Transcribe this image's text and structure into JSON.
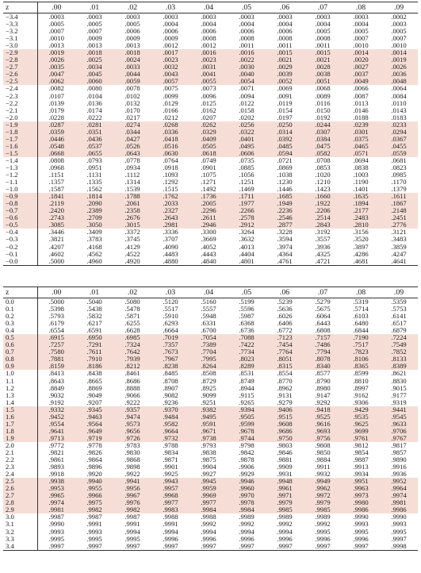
{
  "columns": [
    "z",
    ".00",
    ".01",
    ".02",
    ".03",
    ".04",
    ".05",
    ".06",
    ".07",
    ".08",
    ".09"
  ],
  "columns_bottom": [
    "z",
    ".00",
    ".01",
    ".02",
    ".03",
    ".04",
    ".05",
    ".06",
    ".07",
    ".08",
    ".09"
  ],
  "colors": {
    "band": "#f6ded6",
    "rule": "#333333"
  },
  "negative_table": [
    [
      "-3.4",
      ".0003",
      ".0003",
      ".0003",
      ".0003",
      ".0003",
      ".0003",
      ".0003",
      ".0003",
      ".0003",
      ".0002"
    ],
    [
      "-3.3",
      ".0005",
      ".0005",
      ".0005",
      ".0004",
      ".0004",
      ".0004",
      ".0004",
      ".0004",
      ".0004",
      ".0003"
    ],
    [
      "-3.2",
      ".0007",
      ".0007",
      ".0006",
      ".0006",
      ".0006",
      ".0006",
      ".0006",
      ".0005",
      ".0005",
      ".0005"
    ],
    [
      "-3.1",
      ".0010",
      ".0009",
      ".0009",
      ".0009",
      ".0008",
      ".0008",
      ".0008",
      ".0008",
      ".0007",
      ".0007"
    ],
    [
      "-3.0",
      ".0013",
      ".0013",
      ".0013",
      ".0012",
      ".0012",
      ".0011",
      ".0011",
      ".0011",
      ".0010",
      ".0010"
    ],
    [
      "-2.9",
      ".0019",
      ".0018",
      ".0018",
      ".0017",
      ".0016",
      ".0016",
      ".0015",
      ".0015",
      ".0014",
      ".0014"
    ],
    [
      "-2.8",
      ".0026",
      ".0025",
      ".0024",
      ".0023",
      ".0023",
      ".0022",
      ".0021",
      ".0021",
      ".0020",
      ".0019"
    ],
    [
      "-2.7",
      ".0035",
      ".0034",
      ".0033",
      ".0032",
      ".0031",
      ".0030",
      ".0029",
      ".0028",
      ".0027",
      ".0026"
    ],
    [
      "-2.6",
      ".0047",
      ".0045",
      ".0044",
      ".0043",
      ".0041",
      ".0040",
      ".0039",
      ".0038",
      ".0037",
      ".0036"
    ],
    [
      "-2.5",
      ".0062",
      ".0060",
      ".0059",
      ".0057",
      ".0055",
      ".0054",
      ".0052",
      ".0051",
      ".0049",
      ".0048"
    ],
    [
      "-2.4",
      ".0082",
      ".0080",
      ".0078",
      ".0075",
      ".0073",
      ".0071",
      ".0069",
      ".0068",
      ".0066",
      ".0064"
    ],
    [
      "-2.3",
      ".0107",
      ".0104",
      ".0102",
      ".0099",
      ".0096",
      ".0094",
      ".0091",
      ".0089",
      ".0087",
      ".0084"
    ],
    [
      "-2.2",
      ".0139",
      ".0136",
      ".0132",
      ".0129",
      ".0125",
      ".0122",
      ".0119",
      ".0116",
      ".0113",
      ".0110"
    ],
    [
      "-2.1",
      ".0179",
      ".0174",
      ".0170",
      ".0166",
      ".0162",
      ".0158",
      ".0154",
      ".0150",
      ".0146",
      ".0143"
    ],
    [
      "-2.0",
      ".0228",
      ".0222",
      ".0217",
      ".0212",
      ".0207",
      ".0202",
      ".0197",
      ".0192",
      ".0188",
      ".0183"
    ],
    [
      "-1.9",
      ".0287",
      ".0281",
      ".0274",
      ".0268",
      ".0262",
      ".0256",
      ".0250",
      ".0244",
      ".0239",
      ".0233"
    ],
    [
      "-1.8",
      ".0359",
      ".0351",
      ".0344",
      ".0336",
      ".0329",
      ".0322",
      ".0314",
      ".0307",
      ".0301",
      ".0294"
    ],
    [
      "-1.7",
      ".0446",
      ".0436",
      ".0427",
      ".0418",
      ".0409",
      ".0401",
      ".0392",
      ".0384",
      ".0375",
      ".0367"
    ],
    [
      "-1.6",
      ".0548",
      ".0537",
      ".0526",
      ".0516",
      ".0505",
      ".0495",
      ".0485",
      ".0475",
      ".0465",
      ".0455"
    ],
    [
      "-1.5",
      ".0668",
      ".0655",
      ".0643",
      ".0630",
      ".0618",
      ".0606",
      ".0594",
      ".0582",
      ".0571",
      ".0559"
    ],
    [
      "-1.4",
      ".0808",
      ".0793",
      ".0778",
      ".0764",
      ".0749",
      ".0735",
      ".0721",
      ".0708",
      ".0694",
      ".0681"
    ],
    [
      "-1.3",
      ".0968",
      ".0951",
      ".0934",
      ".0918",
      ".0901",
      ".0885",
      ".0869",
      ".0853",
      ".0838",
      ".0823"
    ],
    [
      "-1.2",
      ".1151",
      ".1131",
      ".1112",
      ".1093",
      ".1075",
      ".1056",
      ".1038",
      ".1020",
      ".1003",
      ".0985"
    ],
    [
      "-1.1",
      ".1357",
      ".1335",
      ".1314",
      ".1292",
      ".1271",
      ".1251",
      ".1230",
      ".1210",
      ".1190",
      ".1170"
    ],
    [
      "-1.0",
      ".1587",
      ".1562",
      ".1539",
      ".1515",
      ".1492",
      ".1469",
      ".1446",
      ".1423",
      ".1401",
      ".1379"
    ],
    [
      "-0.9",
      ".1841",
      ".1814",
      ".1788",
      ".1762",
      ".1736",
      ".1711",
      ".1685",
      ".1660",
      ".1635",
      ".1611"
    ],
    [
      "-0.8",
      ".2119",
      ".2090",
      ".2061",
      ".2033",
      ".2005",
      ".1977",
      ".1949",
      ".1922",
      ".1894",
      ".1867"
    ],
    [
      "-0.7",
      ".2420",
      ".2389",
      ".2358",
      ".2327",
      ".2296",
      ".2266",
      ".2236",
      ".2206",
      ".2177",
      ".2148"
    ],
    [
      "-0.6",
      ".2743",
      ".2709",
      ".2676",
      ".2643",
      ".2611",
      ".2578",
      ".2546",
      ".2514",
      ".2483",
      ".2451"
    ],
    [
      "-0.5",
      ".3085",
      ".3050",
      ".3015",
      ".2981",
      ".2946",
      ".2912",
      ".2877",
      ".2843",
      ".2810",
      ".2776"
    ],
    [
      "-0.4",
      ".3446",
      ".3409",
      ".3372",
      ".3336",
      ".3300",
      ".3264",
      ".3228",
      ".3192",
      ".3156",
      ".3121"
    ],
    [
      "-0.3",
      ".3821",
      ".3783",
      ".3745",
      ".3707",
      ".3669",
      ".3632",
      ".3594",
      ".3557",
      ".3520",
      ".3483"
    ],
    [
      "-0.2",
      ".4207",
      ".4168",
      ".4129",
      ".4090",
      ".4052",
      ".4013",
      ".3974",
      ".3936",
      ".3897",
      ".3859"
    ],
    [
      "-0.1",
      ".4602",
      ".4562",
      ".4522",
      ".4483",
      ".4443",
      ".4404",
      ".4364",
      ".4325",
      ".4286",
      ".4247"
    ],
    [
      "-0.0",
      ".5000",
      ".4960",
      ".4920",
      ".4880",
      ".4840",
      ".4801",
      ".4761",
      ".4721",
      ".4681",
      ".4641"
    ]
  ],
  "positive_table": [
    [
      "0.0",
      ".5000",
      ".5040",
      ".5080",
      ".5120",
      ".5160",
      ".5199",
      ".5239",
      ".5279",
      ".5319",
      ".5359"
    ],
    [
      "0.1",
      ".5398",
      ".5438",
      ".5478",
      ".5517",
      ".5557",
      ".5596",
      ".5636",
      ".5675",
      ".5714",
      ".5753"
    ],
    [
      "0.2",
      ".5793",
      ".5832",
      ".5871",
      ".5910",
      ".5948",
      ".5987",
      ".6026",
      ".6064",
      ".6103",
      ".6141"
    ],
    [
      "0.3",
      ".6179",
      ".6217",
      ".6255",
      ".6293",
      ".6331",
      ".6368",
      ".6406",
      ".6443",
      ".6480",
      ".6517"
    ],
    [
      "0.4",
      ".6554",
      ".6591",
      ".6628",
      ".6664",
      ".6700",
      ".6736",
      ".6772",
      ".6808",
      ".6844",
      ".6879"
    ],
    [
      "0.5",
      ".6915",
      ".6950",
      ".6985",
      ".7019",
      ".7054",
      ".7088",
      ".7123",
      ".7157",
      ".7190",
      ".7224"
    ],
    [
      "0.6",
      ".7257",
      ".7291",
      ".7324",
      ".7357",
      ".7389",
      ".7422",
      ".7454",
      ".7486",
      ".7517",
      ".7549"
    ],
    [
      "0.7",
      ".7580",
      ".7611",
      ".7642",
      ".7673",
      ".7704",
      ".7734",
      ".7764",
      ".7794",
      ".7823",
      ".7852"
    ],
    [
      "0.8",
      ".7881",
      ".7910",
      ".7939",
      ".7967",
      ".7995",
      ".8023",
      ".8051",
      ".8078",
      ".8106",
      ".8133"
    ],
    [
      "0.9",
      ".8159",
      ".8186",
      ".8212",
      ".8238",
      ".8264",
      ".8289",
      ".8315",
      ".8340",
      ".8365",
      ".8389"
    ],
    [
      "1.0",
      ".8413",
      ".8438",
      ".8461",
      ".8485",
      ".8508",
      ".8531",
      ".8554",
      ".8577",
      ".8599",
      ".8621"
    ],
    [
      "1.1",
      ".8643",
      ".8665",
      ".8686",
      ".8708",
      ".8729",
      ".8749",
      ".8770",
      ".8790",
      ".8810",
      ".8830"
    ],
    [
      "1.2",
      ".8849",
      ".8869",
      ".8888",
      ".8907",
      ".8925",
      ".8944",
      ".8962",
      ".8980",
      ".8997",
      ".9015"
    ],
    [
      "1.3",
      ".9032",
      ".9049",
      ".9066",
      ".9082",
      ".9099",
      ".9115",
      ".9131",
      ".9147",
      ".9162",
      ".9177"
    ],
    [
      "1.4",
      ".9192",
      ".9207",
      ".9222",
      ".9236",
      ".9251",
      ".9265",
      ".9279",
      ".9292",
      ".9306",
      ".9319"
    ],
    [
      "1.5",
      ".9332",
      ".9345",
      ".9357",
      ".9370",
      ".9382",
      ".9394",
      ".9406",
      ".9418",
      ".9429",
      ".9441"
    ],
    [
      "1.6",
      ".9452",
      ".9463",
      ".9474",
      ".9484",
      ".9495",
      ".9505",
      ".9515",
      ".9525",
      ".9535",
      ".9545"
    ],
    [
      "1.7",
      ".9554",
      ".9564",
      ".9573",
      ".9582",
      ".9591",
      ".9599",
      ".9608",
      ".9616",
      ".9625",
      ".9633"
    ],
    [
      "1.8",
      ".9641",
      ".9649",
      ".9656",
      ".9664",
      ".9671",
      ".9678",
      ".9686",
      ".9693",
      ".9699",
      ".9706"
    ],
    [
      "1.9",
      ".9713",
      ".9719",
      ".9726",
      ".9732",
      ".9738",
      ".9744",
      ".9750",
      ".9756",
      ".9761",
      ".9767"
    ],
    [
      "2.0",
      ".9772",
      ".9778",
      ".9783",
      ".9788",
      ".9793",
      ".9798",
      ".9803",
      ".9808",
      ".9812",
      ".9817"
    ],
    [
      "2.1",
      ".9821",
      ".9826",
      ".9830",
      ".9834",
      ".9838",
      ".9842",
      ".9846",
      ".9850",
      ".9854",
      ".9857"
    ],
    [
      "2.2",
      ".9861",
      ".9864",
      ".9868",
      ".9871",
      ".9875",
      ".9878",
      ".9881",
      ".9884",
      ".9887",
      ".9890"
    ],
    [
      "2.3",
      ".9893",
      ".9896",
      ".9898",
      ".9901",
      ".9904",
      ".9906",
      ".9909",
      ".9911",
      ".9913",
      ".9916"
    ],
    [
      "2.4",
      ".9918",
      ".9920",
      ".9922",
      ".9925",
      ".9927",
      ".9929",
      ".9931",
      ".9932",
      ".9934",
      ".9936"
    ],
    [
      "2.5",
      ".9938",
      ".9940",
      ".9941",
      ".9943",
      ".9945",
      ".9946",
      ".9948",
      ".9949",
      ".9951",
      ".9952"
    ],
    [
      "2.6",
      ".9953",
      ".9955",
      ".9956",
      ".9957",
      ".9959",
      ".9960",
      ".9961",
      ".9962",
      ".9963",
      ".9964"
    ],
    [
      "2.7",
      ".9965",
      ".9966",
      ".9967",
      ".9968",
      ".9969",
      ".9970",
      ".9971",
      ".9972",
      ".9973",
      ".9974"
    ],
    [
      "2.8",
      ".9974",
      ".9975",
      ".9976",
      ".9977",
      ".9977",
      ".9978",
      ".9979",
      ".9979",
      ".9980",
      ".9981"
    ],
    [
      "2.9",
      ".9981",
      ".9982",
      ".9982",
      ".9983",
      ".9984",
      ".9984",
      ".9985",
      ".9985",
      ".9986",
      ".9986"
    ],
    [
      "3.0",
      ".9987",
      ".9987",
      ".9987",
      ".9988",
      ".9988",
      ".9989",
      ".9989",
      ".9989",
      ".9990",
      ".9990"
    ],
    [
      "3.1",
      ".9990",
      ".9991",
      ".9991",
      ".9991",
      ".9992",
      ".9992",
      ".9992",
      ".9992",
      ".9993",
      ".9993"
    ],
    [
      "3.2",
      ".9993",
      ".9993",
      ".9994",
      ".9994",
      ".9994",
      ".9994",
      ".9994",
      ".9995",
      ".9995",
      ".9995"
    ],
    [
      "3.3",
      ".9995",
      ".9995",
      ".9995",
      ".9996",
      ".9996",
      ".9996",
      ".9996",
      ".9996",
      ".9996",
      ".9997"
    ],
    [
      "3.4",
      ".9997",
      ".9997",
      ".9997",
      ".9997",
      ".9997",
      ".9997",
      ".9997",
      ".9997",
      ".9997",
      ".9998"
    ]
  ],
  "bands_negative": [
    5,
    6,
    7,
    8,
    9,
    15,
    16,
    17,
    18,
    19,
    25,
    26,
    27,
    28,
    29
  ],
  "bands_positive": [
    5,
    6,
    7,
    8,
    9,
    15,
    16,
    17,
    18,
    19,
    25,
    26,
    27,
    28,
    29
  ]
}
